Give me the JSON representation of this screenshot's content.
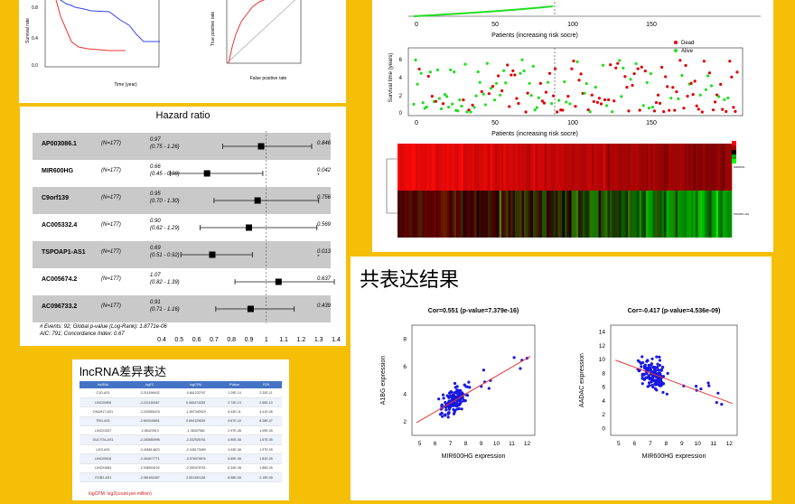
{
  "km": {
    "y_label": "Survival rate",
    "x_label": "Time (year)",
    "roc_y_label": "True positive rate",
    "roc_x_label": "False positive rate"
  },
  "forest": {
    "title": "Hazard ratio",
    "rows": [
      {
        "gene": "AP003086.1",
        "n": "(N=177)",
        "hr": "0.97",
        "ci": "(0.75 - 1.26)",
        "p": "0.846",
        "hr_value": 0.97,
        "lo": 0.75,
        "hi": 1.26
      },
      {
        "gene": "MIR600HG",
        "n": "(N=177)",
        "hr": "0.66",
        "ci": "(0.45 - 0.98)",
        "p": "0.042 *",
        "hr_value": 0.66,
        "lo": 0.45,
        "hi": 0.98
      },
      {
        "gene": "C9orf139",
        "n": "(N=177)",
        "hr": "0.95",
        "ci": "(0.70 - 1.30)",
        "p": "0.756",
        "hr_value": 0.95,
        "lo": 0.7,
        "hi": 1.3
      },
      {
        "gene": "AC005332.4",
        "n": "(N=177)",
        "hr": "0.90",
        "ci": "(0.62 - 1.29)",
        "p": "0.569",
        "hr_value": 0.9,
        "lo": 0.62,
        "hi": 1.29
      },
      {
        "gene": "TSPOAP1-AS1",
        "n": "(N=177)",
        "hr": "0.69",
        "ci": "(0.51 - 0.92)",
        "p": "0.013 *",
        "hr_value": 0.69,
        "lo": 0.51,
        "hi": 0.92
      },
      {
        "gene": "AC005674.2",
        "n": "(N=177)",
        "hr": "1.07",
        "ci": "(0.82 - 1.39)",
        "p": "0.637",
        "hr_value": 1.07,
        "lo": 0.82,
        "hi": 1.39
      },
      {
        "gene": "AC096733.2",
        "n": "(N=177)",
        "hr": "0.91",
        "ci": "(0.71 - 1.16)",
        "p": "0.439",
        "hr_value": 0.91,
        "lo": 0.71,
        "hi": 1.16
      }
    ],
    "footer1": "# Events: 92; Global p-value (Log-Rank): 1.8771e-06",
    "footer2": "AIC: 791; Concordance Index: 0.67",
    "ticks": [
      "0.4",
      "0.5",
      "0.6",
      "0.7",
      "0.8",
      "0.9",
      "1",
      "1.1",
      "1.2",
      "1.3",
      "1.4"
    ]
  },
  "lnc": {
    "title": "lncRNA差异表达",
    "headers": [
      "lncRNA",
      "logFC",
      "logCPM",
      "PValue",
      "FDR"
    ],
    "rows": [
      [
        "C1D-AS1",
        "-3.311596402",
        "-0.661222767",
        "1.29E-14",
        "2.32E-11"
      ],
      [
        "LINC00996",
        "-3.221150067",
        "0.060474255",
        "2.73E-13",
        "2.56E-10"
      ],
      [
        "DNAH17-AS1",
        "-3.330565478",
        "-1.897340929",
        "6.44E-11",
        "4.41E-08"
      ],
      [
        "TRG-AS1",
        "-2.693349891",
        "0.694129539",
        "9.67E-10",
        "8.28E-07"
      ],
      [
        "LINC01537",
        "-2.56423913",
        "-1.38307582",
        "2.97E-08",
        "1.09E-05"
      ],
      [
        "GUCY2A-AS1",
        "-2.283650996",
        "-2.332926761",
        "4.90E-08",
        "1.57E-05"
      ],
      [
        "UXS-AS1",
        "-3.406814823",
        "-2.345173489",
        "4.93E-08",
        "1.57E-05"
      ],
      [
        "LINC00528",
        "-2.454577771",
        "-0.576979676",
        "5.80E-08",
        "1.81E-05"
      ],
      [
        "LINC01684",
        "-2.536904102",
        "-2.050478761",
        "6.34E-08",
        "1.86E-05"
      ],
      [
        "ITGB2-AS1",
        "-2.981653467",
        "2.551390138",
        "8.58E-08",
        "2.19E-05"
      ]
    ],
    "note": "logCPM: log2(count per million)"
  },
  "risk": {
    "x_label_1": "Patients (increasing risk socre)",
    "x_label_2": "Patients (increasing risk socre)",
    "y_label": "Survival time (years)",
    "legend": [
      "Dead",
      "Alive"
    ],
    "x_ticks": [
      "0",
      "50",
      "100",
      "150"
    ],
    "y_ticks": [
      "0",
      "2",
      "4",
      "6"
    ],
    "heat_labels": [
      "TSPOAP1-AS1",
      "MIR600HG"
    ],
    "colors": {
      "dead": "#e00000",
      "alive": "#22dd22"
    }
  },
  "coexp": {
    "title": "共表达结果",
    "plots": [
      {
        "title": "Cor=0.551 (p-value=7.379e-16)",
        "xlabel": "MIR600HG expression",
        "ylabel": "A1BG expression",
        "x_ticks": [
          "5",
          "6",
          "7",
          "8",
          "9",
          "10",
          "11",
          "12"
        ],
        "y_ticks": [
          "2",
          "4",
          "6",
          "8"
        ]
      },
      {
        "title": "Cor=-0.417 (p-value=4.536e-09)",
        "xlabel": "MIR600HG expression",
        "ylabel": "AADAC expression",
        "x_ticks": [
          "5",
          "6",
          "7",
          "8",
          "9",
          "10",
          "11",
          "12"
        ],
        "y_ticks": [
          "0",
          "2",
          "4",
          "6",
          "8",
          "10",
          "12",
          "14"
        ]
      }
    ],
    "colors": {
      "point": "#1818e0",
      "line": "#e63a3a"
    }
  }
}
